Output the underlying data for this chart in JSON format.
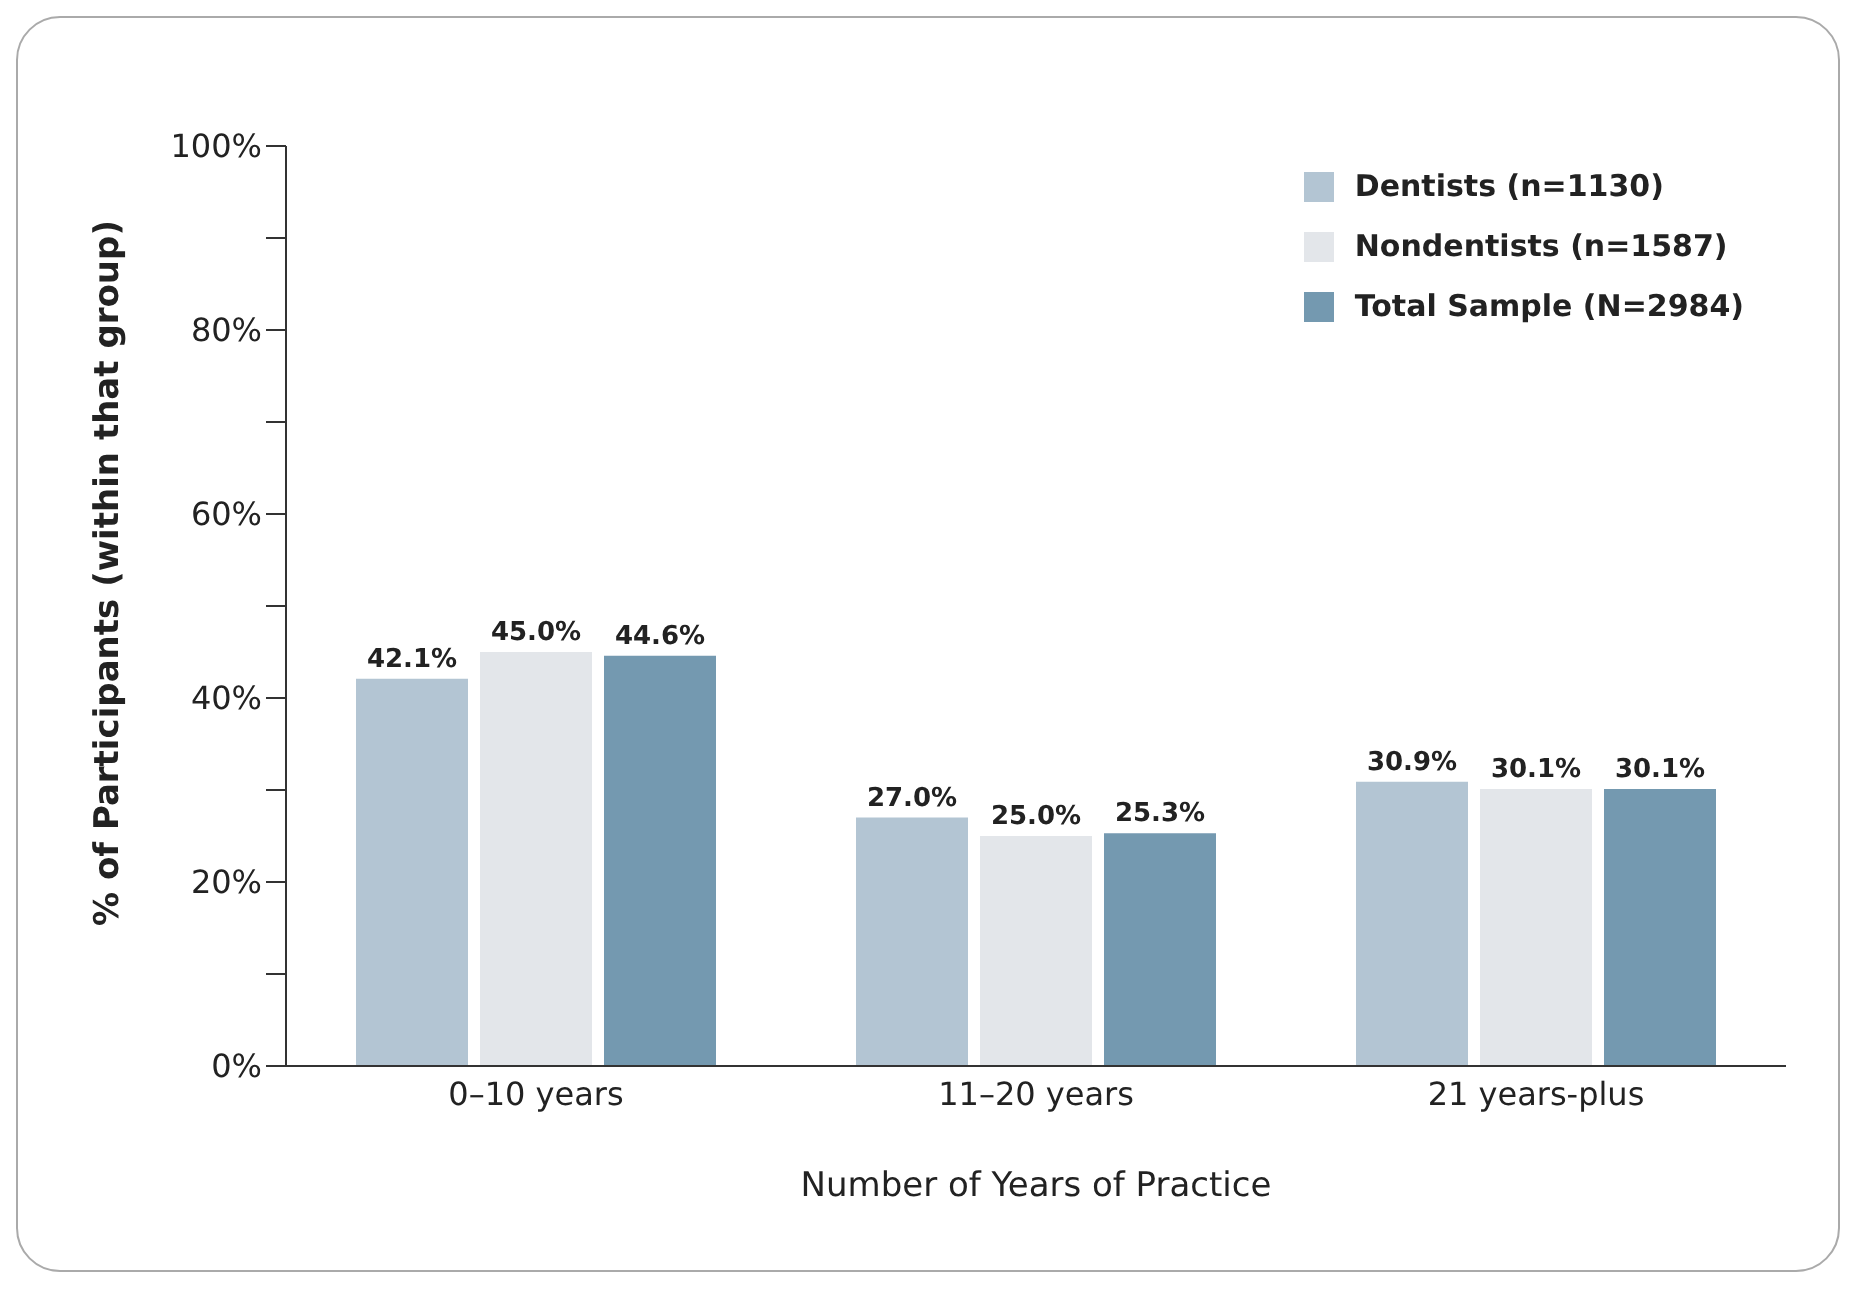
{
  "chart_data": {
    "type": "bar",
    "xlabel": "Number of Years of Practice",
    "ylabel": "% of Participants (within that group)",
    "categories": [
      "0–10 years",
      "11–20 years",
      "21 years-plus"
    ],
    "series": [
      {
        "name": "Dentists (n=1130)",
        "color": "#b3c5d3",
        "values": [
          42.1,
          27.0,
          30.9
        ],
        "value_labels": [
          "42.1%",
          "27.0%",
          "30.9%"
        ]
      },
      {
        "name": "Nondentists (n=1587)",
        "color": "#e3e6ea",
        "values": [
          45.0,
          25.0,
          30.1
        ],
        "value_labels": [
          "45.0%",
          "25.0%",
          "30.1%"
        ]
      },
      {
        "name": "Total Sample (N=2984)",
        "color": "#7499b0",
        "values": [
          44.6,
          25.3,
          30.1
        ],
        "value_labels": [
          "44.6%",
          "25.3%",
          "30.1%"
        ]
      }
    ],
    "ylim": [
      0,
      100
    ],
    "yticks": [
      {
        "value": 0,
        "label": "0%"
      },
      {
        "value": 10,
        "label": null
      },
      {
        "value": 20,
        "label": "20%"
      },
      {
        "value": 30,
        "label": null
      },
      {
        "value": 40,
        "label": "40%"
      },
      {
        "value": 50,
        "label": null
      },
      {
        "value": 60,
        "label": "60%"
      },
      {
        "value": 70,
        "label": null
      },
      {
        "value": 80,
        "label": "80%"
      },
      {
        "value": 90,
        "label": null
      },
      {
        "value": 100,
        "label": "100%"
      }
    ],
    "grid": false,
    "legend": "top right"
  }
}
